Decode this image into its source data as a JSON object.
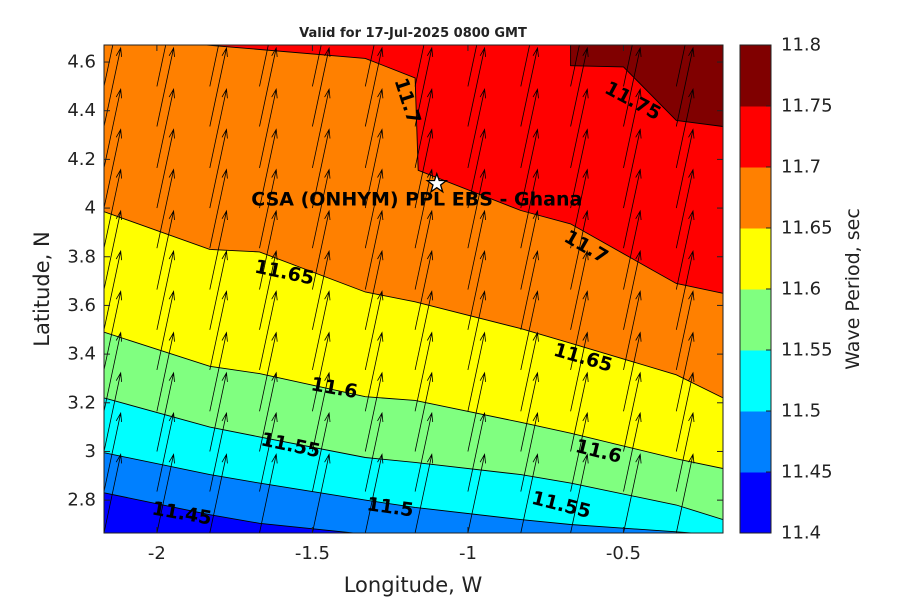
{
  "chart_data": {
    "type": "contour",
    "title": "Valid for 17-Jul-2025 0800 GMT",
    "xlabel": "Longitude, W",
    "ylabel": "Latitude, N",
    "colorbar_label": "Wave Period, sec",
    "xlim": [
      -2.17,
      -0.18
    ],
    "ylim": [
      2.665,
      4.67
    ],
    "x_ticks": [
      -2,
      -1.5,
      -1,
      -0.5
    ],
    "x_tick_labels": [
      "-2",
      "-1.5",
      "-1",
      "-0.5"
    ],
    "y_ticks": [
      2.8,
      3,
      3.2,
      3.4,
      3.6,
      3.8,
      4,
      4.2,
      4.4,
      4.6
    ],
    "y_tick_labels": [
      "2.8",
      "3",
      "3.2",
      "3.4",
      "3.6",
      "3.8",
      "4",
      "4.2",
      "4.4",
      "4.6"
    ],
    "levels": [
      11.4,
      11.45,
      11.5,
      11.55,
      11.6,
      11.65,
      11.7,
      11.75,
      11.8
    ],
    "level_labels": [
      "11.4",
      "11.45",
      "11.5",
      "11.55",
      "11.6",
      "11.65",
      "11.7",
      "11.75",
      "11.8"
    ],
    "band_colors": [
      "#0000ff",
      "#0080ff",
      "#00ffff",
      "#80ff80",
      "#ffff00",
      "#ff8000",
      "#ff0000",
      "#800000"
    ],
    "contours": [
      {
        "level": 11.45,
        "x": [
          -2.17,
          -1.83,
          -1.67,
          -1.33,
          -1.17,
          -0.95
        ],
        "y": [
          2.83,
          2.74,
          2.705,
          2.66,
          2.655,
          2.645
        ]
      },
      {
        "level": 11.5,
        "x": [
          -2.17,
          -1.83,
          -1.67,
          -1.33,
          -1.17,
          -0.83,
          -0.67,
          -0.33,
          -0.18
        ],
        "y": [
          2.995,
          2.905,
          2.87,
          2.8,
          2.77,
          2.72,
          2.7,
          2.67,
          2.655
        ]
      },
      {
        "level": 11.55,
        "x": [
          -2.17,
          -1.83,
          -1.67,
          -1.33,
          -1.17,
          -0.83,
          -0.67,
          -0.33,
          -0.18
        ],
        "y": [
          3.22,
          3.1,
          3.06,
          2.975,
          2.955,
          2.905,
          2.87,
          2.78,
          2.72
        ]
      },
      {
        "level": 11.6,
        "x": [
          -2.17,
          -1.83,
          -1.67,
          -1.33,
          -1.17,
          -0.83,
          -0.67,
          -0.33,
          -0.18
        ],
        "y": [
          3.49,
          3.35,
          3.32,
          3.225,
          3.21,
          3.12,
          3.075,
          2.97,
          2.93
        ]
      },
      {
        "level": 11.65,
        "x": [
          -2.17,
          -1.83,
          -1.67,
          -1.33,
          -1.17,
          -0.83,
          -0.67,
          -0.33,
          -0.18
        ],
        "y": [
          3.985,
          3.83,
          3.82,
          3.655,
          3.615,
          3.505,
          3.445,
          3.315,
          3.22
        ]
      },
      {
        "level": 11.7,
        "x": [
          -1.84,
          -1.33,
          -1.17,
          -1.16,
          -0.83,
          -0.67,
          -0.33,
          -0.18
        ],
        "y": [
          4.67,
          4.615,
          4.535,
          4.155,
          3.99,
          3.935,
          3.69,
          3.65
        ]
      },
      {
        "level": 11.75,
        "x": [
          -0.67,
          -0.67,
          -0.5,
          -0.33,
          -0.18
        ],
        "y": [
          4.67,
          4.585,
          4.58,
          4.36,
          4.335
        ]
      }
    ],
    "contour_labels": [
      {
        "text": "11.45",
        "x": -1.92,
        "y": 2.745,
        "angle": 10
      },
      {
        "text": "11.5",
        "x": -1.25,
        "y": 2.77,
        "angle": 8
      },
      {
        "text": "11.55",
        "x": -1.57,
        "y": 3.025,
        "angle": 12
      },
      {
        "text": "11.55",
        "x": -0.7,
        "y": 2.78,
        "angle": 14
      },
      {
        "text": "11.6",
        "x": -1.43,
        "y": 3.26,
        "angle": 10
      },
      {
        "text": "11.6",
        "x": -0.58,
        "y": 3.0,
        "angle": 14
      },
      {
        "text": "11.65",
        "x": -1.59,
        "y": 3.735,
        "angle": 12
      },
      {
        "text": "11.65",
        "x": -0.63,
        "y": 3.385,
        "angle": 16
      },
      {
        "text": "11.7",
        "x": -1.195,
        "y": 4.44,
        "angle": 72
      },
      {
        "text": "11.7",
        "x": -0.62,
        "y": 3.84,
        "angle": 30
      },
      {
        "text": "11.75",
        "x": -0.47,
        "y": 4.44,
        "angle": 28
      }
    ],
    "site": {
      "label": "CSA (ONHYM) PPL EBS  - Ghana",
      "lon": -1.1,
      "lat": 4.1
    },
    "vectors": {
      "x": [
        -2.17,
        -2.0,
        -1.83,
        -1.67,
        -1.5,
        -1.33,
        -1.17,
        -1.0,
        -0.83,
        -0.67,
        -0.5,
        -0.33,
        -0.18
      ],
      "y": [
        2.665,
        2.835,
        3.0,
        3.165,
        3.335,
        3.5,
        3.665,
        3.835,
        4.0,
        4.165,
        4.335,
        4.5
      ],
      "direction_deg": 12,
      "length_lat": 0.33
    }
  }
}
